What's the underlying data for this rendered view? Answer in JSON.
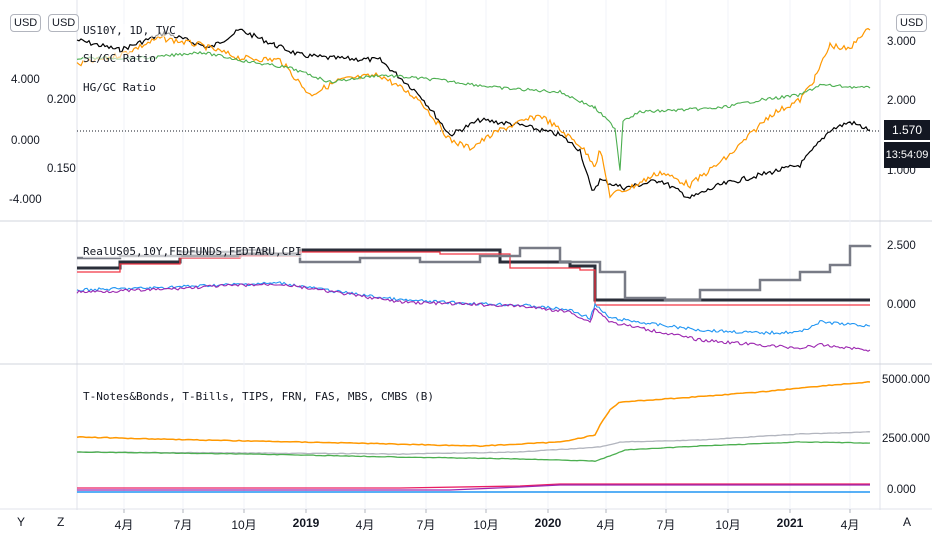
{
  "colors": {
    "us10y": "#000000",
    "gold_ratio": "#ff9800",
    "copper_ratio": "#4caf50",
    "real_dark": "#2a2e39",
    "real_red": "#f23645",
    "real_gray": "#787b86",
    "real_blue": "#2196f3",
    "real_purple": "#9c27b0",
    "supply_orange": "#ff9800",
    "supply_gray": "#b2b5be",
    "supply_green": "#4caf50",
    "supply_red": "#e91e63",
    "supply_purple": "#9c27b0",
    "supply_blue": "#2196f3"
  },
  "header": {
    "currency_left1": "USD",
    "currency_left2": "USD",
    "currency_right": "USD"
  },
  "pane1": {
    "legend": [
      "US10Y, 1D, TVC",
      "SL/GC Ratio",
      "HG/GC Ratio"
    ],
    "left_axis_outer": [
      "4.000",
      "0.000",
      "-4.000"
    ],
    "left_axis_inner": [
      "0.200",
      "0.150"
    ],
    "right_axis": [
      "3.000",
      "2.000",
      "1.000"
    ],
    "last_price": "1.570",
    "countdown": "13:54:09"
  },
  "pane2": {
    "legend": "RealUS05,10Y,FEDFUNDS,FEDTARU,CPI",
    "right_axis": [
      "2.500",
      "0.000"
    ]
  },
  "pane3": {
    "legend": "T-Notes&Bonds, T-Bills, TIPS, FRN, FAS, MBS, CMBS (B)",
    "right_axis": [
      "5000.000",
      "2500.000",
      "0.000"
    ]
  },
  "x_axis": {
    "ticks": [
      {
        "label": "4月",
        "bold": false
      },
      {
        "label": "7月",
        "bold": false
      },
      {
        "label": "10月",
        "bold": false
      },
      {
        "label": "2019",
        "bold": true
      },
      {
        "label": "4月",
        "bold": false
      },
      {
        "label": "7月",
        "bold": false
      },
      {
        "label": "10月",
        "bold": false
      },
      {
        "label": "2020",
        "bold": true
      },
      {
        "label": "4月",
        "bold": false
      },
      {
        "label": "7月",
        "bold": false
      },
      {
        "label": "10月",
        "bold": false
      },
      {
        "label": "2021",
        "bold": true
      },
      {
        "label": "4月",
        "bold": false
      }
    ]
  },
  "bottom_buttons": {
    "left1": "Y",
    "left2": "Z",
    "right": "A"
  },
  "chart_data": [
    {
      "type": "line",
      "x": [
        "2018-01",
        "2018-04",
        "2018-07",
        "2018-10",
        "2019-01",
        "2019-04",
        "2019-07",
        "2019-10",
        "2020-01",
        "2020-03",
        "2020-04",
        "2020-07",
        "2020-10",
        "2021-01",
        "2021-04",
        "2021-05"
      ],
      "series": [
        {
          "name": "US10Y, 1D, TVC",
          "values": [
            2.45,
            2.8,
            2.85,
            3.15,
            2.7,
            2.5,
            2.05,
            1.75,
            1.8,
            0.6,
            0.65,
            0.6,
            0.8,
            1.1,
            1.65,
            1.57
          ]
        },
        {
          "name": "SL/GC Ratio",
          "values": [
            0.205,
            0.2,
            0.21,
            0.2,
            0.195,
            0.19,
            0.175,
            0.175,
            0.17,
            0.13,
            0.145,
            0.155,
            0.16,
            0.18,
            0.2,
            0.21
          ]
        },
        {
          "name": "HG/GC Ratio",
          "values": [
            0.22,
            0.21,
            0.22,
            0.21,
            0.205,
            0.2,
            0.2,
            0.195,
            0.195,
            0.18,
            0.16,
            0.165,
            0.17,
            0.185,
            0.195,
            0.2
          ]
        }
      ]
    },
    {
      "type": "line",
      "x": [
        "2018-01",
        "2018-07",
        "2019-01",
        "2019-07",
        "2020-01",
        "2020-03",
        "2020-04",
        "2020-07",
        "2020-10",
        "2021-01",
        "2021-05"
      ],
      "series": [
        {
          "name": "RealUS05,10Y,FEDFUNDS,FEDTARU,CPI",
          "values": [
            1.4,
            2.0,
            2.4,
            2.2,
            1.6,
            1.4,
            0.05,
            0.1,
            0.1,
            0.1,
            0.1
          ]
        }
      ],
      "ylim": [
        -1.5,
        3.0
      ]
    },
    {
      "type": "line",
      "x": [
        "2018-01",
        "2019-01",
        "2020-01",
        "2020-03",
        "2020-04",
        "2020-07",
        "2021-01",
        "2021-05"
      ],
      "series": [
        {
          "name": "T-Notes&Bonds",
          "values": [
            2350,
            2200,
            2100,
            2400,
            3700,
            4100,
            4600,
            4950
          ]
        },
        {
          "name": "T-Bills",
          "values": [
            1700,
            1550,
            1450,
            1550,
            1850,
            2000,
            2300,
            2500
          ]
        },
        {
          "name": "TIPS",
          "values": [
            1750,
            1600,
            1450,
            1500,
            1800,
            1900,
            2000,
            2150
          ]
        },
        {
          "name": "FRN",
          "values": [
            150,
            150,
            200,
            250,
            300,
            300,
            300,
            300
          ]
        },
        {
          "name": "MBS",
          "values": [
            100,
            120,
            150,
            200,
            250,
            280,
            280,
            280
          ]
        },
        {
          "name": "CMBS",
          "values": [
            20,
            20,
            20,
            20,
            20,
            20,
            20,
            20
          ]
        }
      ],
      "ylim": [
        0,
        5500
      ]
    }
  ]
}
